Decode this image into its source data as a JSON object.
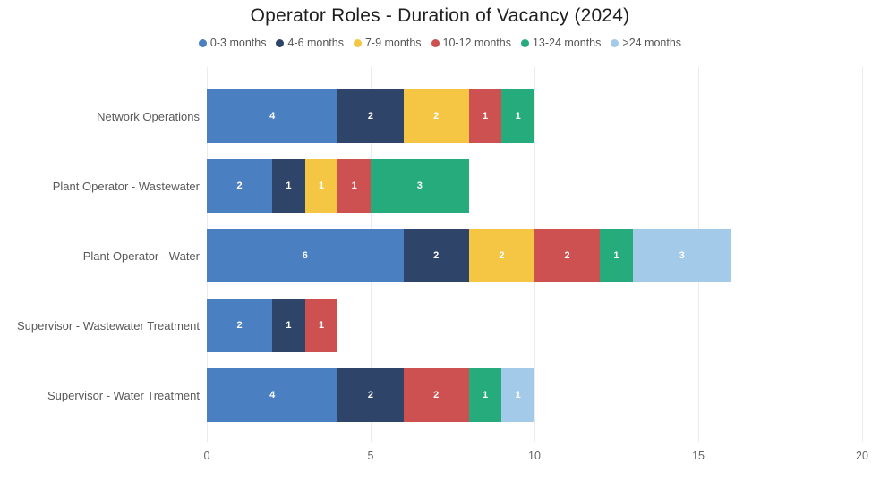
{
  "title": "Operator Roles - Duration of Vacancy (2024)",
  "chart_data": {
    "type": "bar",
    "orientation": "horizontal",
    "stacked": true,
    "title": "Operator Roles - Duration of Vacancy (2024)",
    "categories": [
      "Network Operations",
      "Plant Operator - Wastewater",
      "Plant Operator - Water",
      "Supervisor - Wastewater Treatment",
      "Supervisor - Water Treatment"
    ],
    "series": [
      {
        "name": "0-3 months",
        "color": "#4a80c1",
        "values": [
          4,
          2,
          6,
          2,
          4
        ]
      },
      {
        "name": "4-6 months",
        "color": "#2e4468",
        "values": [
          2,
          1,
          2,
          1,
          2
        ]
      },
      {
        "name": "7-9 months",
        "color": "#f5c544",
        "values": [
          2,
          1,
          2,
          0,
          0
        ]
      },
      {
        "name": "10-12 months",
        "color": "#cd5150",
        "values": [
          1,
          1,
          2,
          1,
          2
        ]
      },
      {
        "name": "13-24 months",
        "color": "#26ab7d",
        "values": [
          1,
          3,
          1,
          0,
          1
        ]
      },
      {
        "name": ">24 months",
        "color": "#a3cbe9",
        "values": [
          0,
          0,
          3,
          0,
          1
        ]
      }
    ],
    "totals": [
      10,
      8,
      16,
      4,
      10
    ],
    "xlim": [
      0,
      20
    ],
    "x_ticks": [
      0,
      5,
      10,
      15,
      20
    ],
    "grid": true,
    "legend_position": "top",
    "value_labels": "inside segments, white, hidden when 0",
    "grid_color": "#ebebeb",
    "label_color": "#595959",
    "tick_color": "#666666"
  }
}
